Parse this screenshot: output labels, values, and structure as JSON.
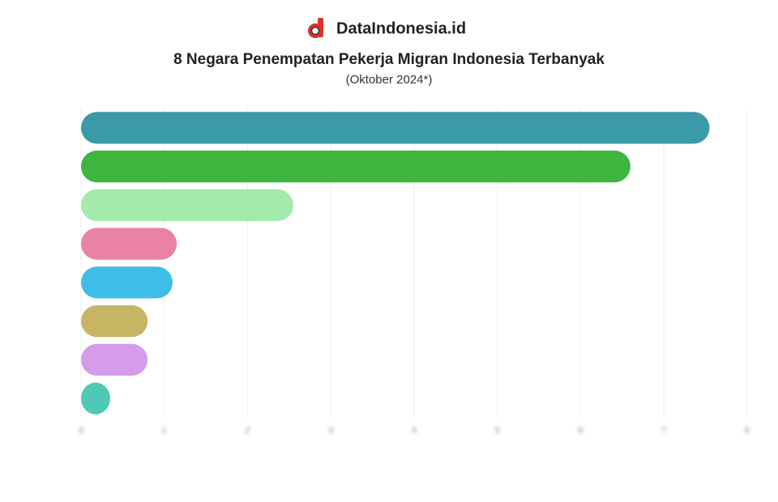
{
  "brand": "DataIndonesia.id",
  "chart_data": {
    "type": "hbar",
    "title": "8 Negara Penempatan Pekerja Migran Indonesia Terbanyak",
    "subtitle": "(Oktober 2024*)",
    "categories": [
      null,
      null,
      null,
      null,
      null,
      null,
      null,
      null
    ],
    "values": [
      7.55,
      6.6,
      2.55,
      1.15,
      1.1,
      0.8,
      0.8,
      0.35
    ],
    "colors": [
      "#3a9aa8",
      "#3db53f",
      "#a3eaab",
      "#ea83a3",
      "#3fbde9",
      "#c6b563",
      "#d59ce9",
      "#4dc9b5"
    ],
    "xlim": [
      0,
      8.1
    ],
    "xticks": [
      0,
      1,
      2,
      3,
      4,
      5,
      6,
      7,
      8
    ],
    "grid": true
  }
}
